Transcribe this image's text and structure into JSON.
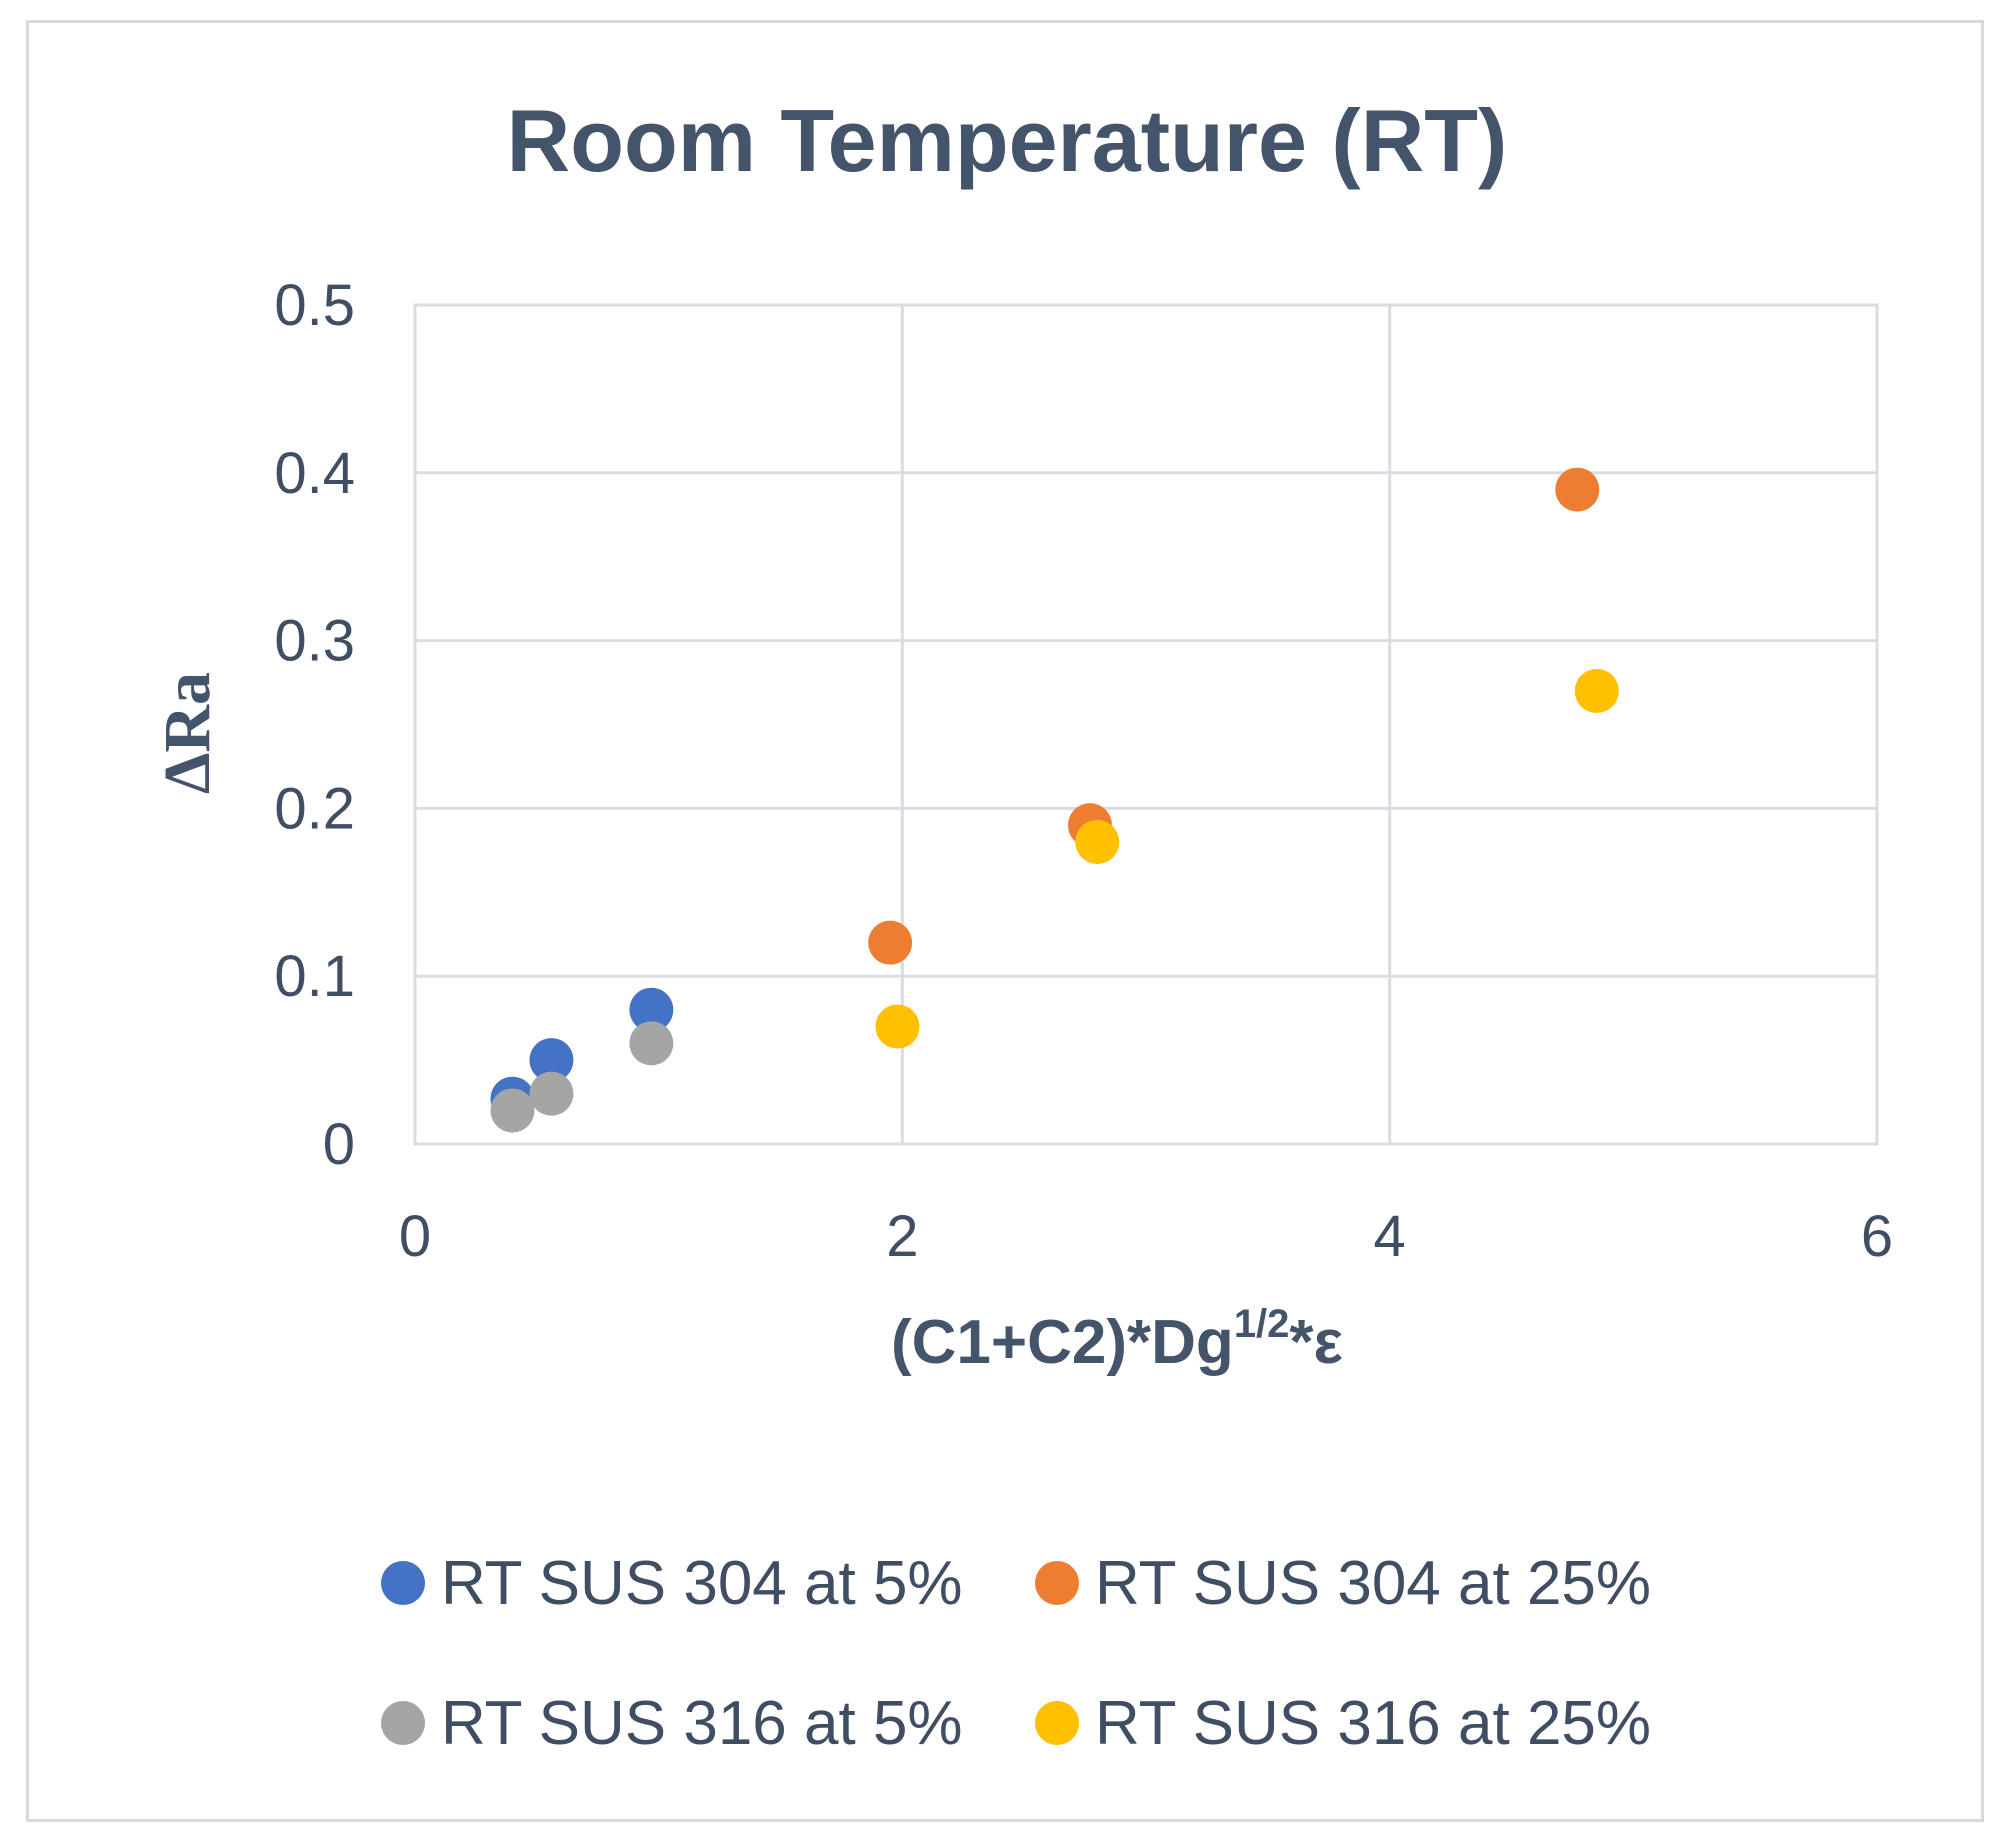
{
  "chart_data": {
    "type": "scatter",
    "title": "Room Temperature (RT)",
    "xlabel": {
      "main": "(C1+C2)*Dg",
      "superscript": "1/2",
      "suffix": "*ε"
    },
    "ylabel": "ΔRa",
    "xlim": [
      0,
      6
    ],
    "ylim": [
      0,
      0.5
    ],
    "x_ticks": [
      0,
      2,
      4,
      6
    ],
    "x_tick_labels": [
      "0",
      "2",
      "4",
      "6"
    ],
    "y_ticks": [
      0,
      0.1,
      0.2,
      0.3,
      0.4,
      0.5
    ],
    "y_tick_labels": [
      "0",
      "0.1",
      "0.2",
      "0.3",
      "0.4",
      "0.5"
    ],
    "grid": true,
    "legend_position": "bottom",
    "series": [
      {
        "name": "RT SUS 304 at 5%",
        "color": "#4472c4",
        "points": [
          {
            "x": 0.4,
            "y": 0.027
          },
          {
            "x": 0.56,
            "y": 0.05
          },
          {
            "x": 0.97,
            "y": 0.08
          }
        ]
      },
      {
        "name": "RT SUS 304 at 25%",
        "color": "#ed7d31",
        "points": [
          {
            "x": 1.95,
            "y": 0.12
          },
          {
            "x": 2.77,
            "y": 0.19
          },
          {
            "x": 4.77,
            "y": 0.39
          }
        ]
      },
      {
        "name": "RT SUS 316 at 5%",
        "color": "#a5a5a5",
        "points": [
          {
            "x": 0.4,
            "y": 0.02
          },
          {
            "x": 0.56,
            "y": 0.03
          },
          {
            "x": 0.97,
            "y": 0.06
          }
        ]
      },
      {
        "name": "RT SUS 316 at 25%",
        "color": "#ffc000",
        "points": [
          {
            "x": 1.98,
            "y": 0.07
          },
          {
            "x": 2.8,
            "y": 0.18
          },
          {
            "x": 4.85,
            "y": 0.27
          }
        ]
      }
    ]
  }
}
